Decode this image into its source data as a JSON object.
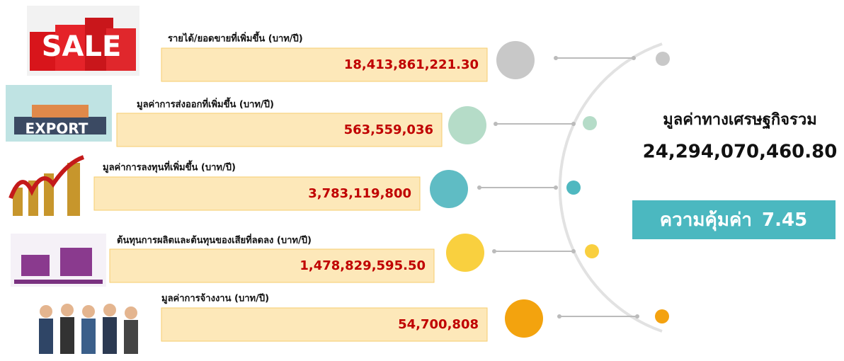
{
  "items": [
    {
      "label": "รายได้/ยอดขายที่เพิ่มขึ้น (บาท/ปี)",
      "value": "18,413,861,221.30",
      "color": "#c8c8c8",
      "dot_color": "#c8c8c8"
    },
    {
      "label": "มูลค่าการส่งออกที่เพิ่มขึ้น (บาท/ปี)",
      "value": "563,559,036",
      "color": "#b5dcc8",
      "dot_color": "#b5dcc8"
    },
    {
      "label": "มูลค่าการลงทุนที่เพิ่มขึ้น (บาท/ปี)",
      "value": "3,783,119,800",
      "color": "#5fbcc4",
      "dot_color": "#4fb8c0"
    },
    {
      "label": "ต้นทุนการผลิตและต้นทุนของเสียที่ลดลง (บาท/ปี)",
      "value": "1,478,829,595.50",
      "color": "#f9d03f",
      "dot_color": "#f9cf3f"
    },
    {
      "label": "มูลค่าการจ้างงาน (บาท/ปี)",
      "value": "54,700,808",
      "color": "#f3a30e",
      "dot_color": "#f4a20f"
    }
  ],
  "summary": {
    "title": "มูลค่าทางเศรษฐกิจรวม",
    "total": "24,294,070,460.80",
    "ratio_label": "ความคุ้มค่า",
    "ratio": "7.45"
  }
}
